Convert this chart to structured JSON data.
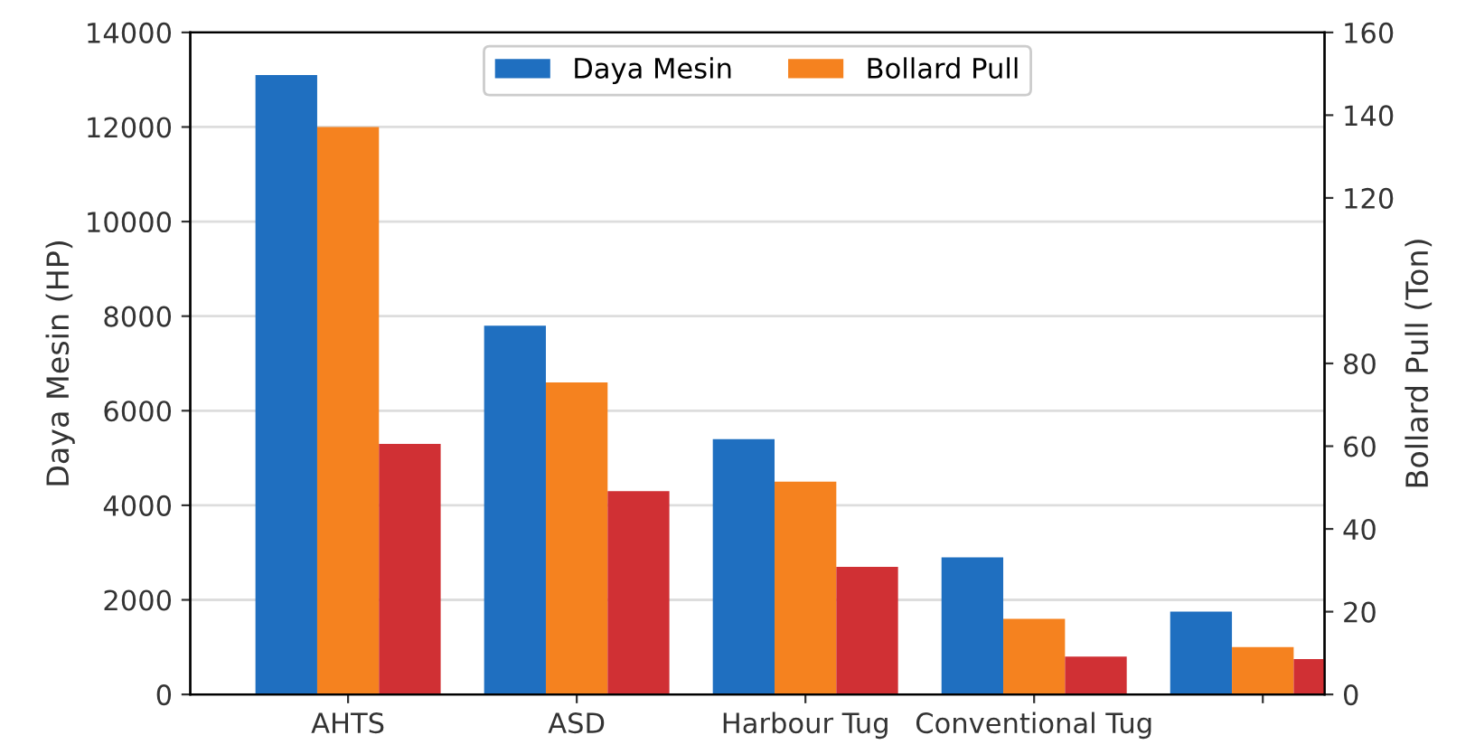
{
  "chart_data": {
    "type": "bar",
    "categories": [
      "AHTS",
      "ASD",
      "Harbour Tug",
      "Conventional Tug",
      null
    ],
    "series": [
      {
        "name": "Daya Mesin",
        "color": "#1f6fc0",
        "values": [
          13100,
          7800,
          5400,
          2900,
          1750
        ]
      },
      {
        "name": "Bollard Pull",
        "color": "#f5821f",
        "values": [
          12000,
          6600,
          4500,
          1600,
          1000
        ]
      },
      {
        "color": "#d03034",
        "values": [
          5300,
          4300,
          2700,
          800,
          750
        ]
      }
    ],
    "ylabel": "Daya Mesin (HP)",
    "y2label": "Bollard Pull (Ton)",
    "ylim": [
      0,
      14000
    ],
    "yticks": [
      0,
      2000,
      4000,
      6000,
      8000,
      10000,
      12000,
      14000
    ],
    "y2lim": [
      0,
      160
    ],
    "y2ticks": [
      0,
      20,
      40,
      60,
      80,
      120,
      140,
      160
    ],
    "grid": "y",
    "legend": "top"
  }
}
